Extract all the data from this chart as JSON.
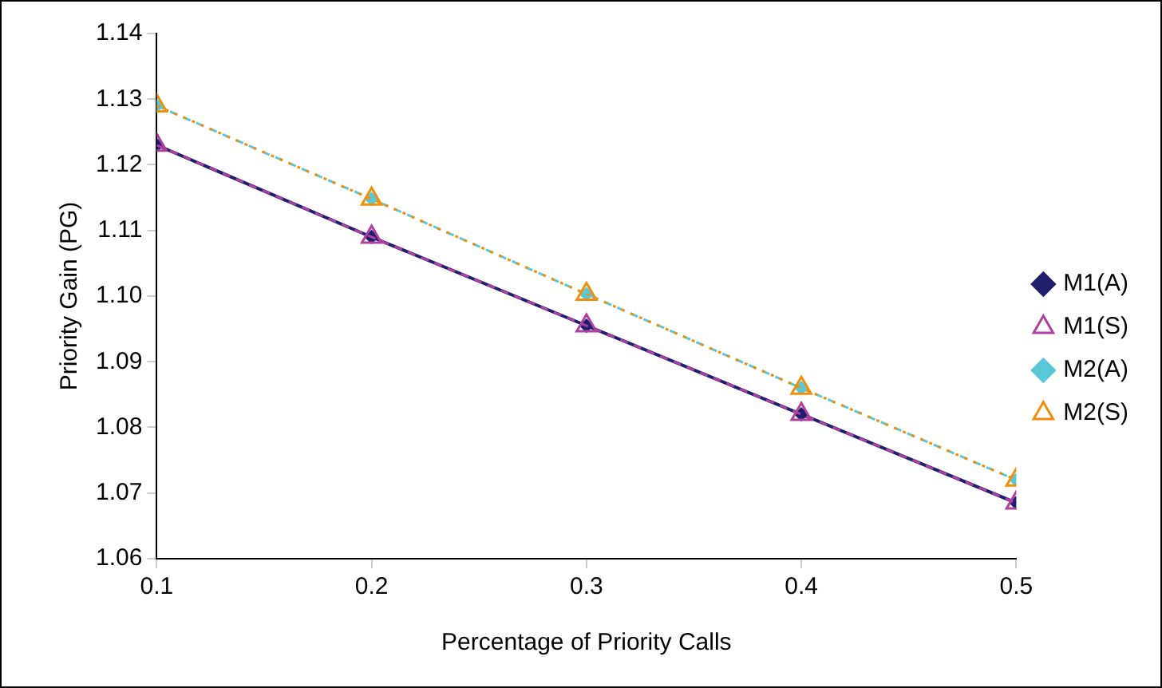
{
  "chart_data": {
    "type": "line",
    "xlabel": "Percentage of Priority Calls",
    "ylabel": "Priority Gain (PG)",
    "x": [
      0.1,
      0.2,
      0.3,
      0.4,
      0.5
    ],
    "series": [
      {
        "name": "M1(A)",
        "color": "#1f1f6e",
        "values": [
          1.123,
          1.109,
          1.0955,
          1.082,
          1.0685
        ],
        "marker": "diamond",
        "line_style": "solid"
      },
      {
        "name": "M1(S)",
        "color": "#b040a0",
        "values": [
          1.123,
          1.109,
          1.0955,
          1.082,
          1.0685
        ],
        "marker": "triangle",
        "line_style": "dashed"
      },
      {
        "name": "M2(A)",
        "color": "#5bc8d8",
        "values": [
          1.129,
          1.1148,
          1.1003,
          1.086,
          1.072
        ],
        "marker": "diamond",
        "line_style": "dashed"
      },
      {
        "name": "M2(S)",
        "color": "#f0900a",
        "values": [
          1.129,
          1.1148,
          1.1003,
          1.086,
          1.072
        ],
        "marker": "triangle",
        "line_style": "dotted"
      }
    ],
    "xlim": [
      0.1,
      0.5
    ],
    "xticks": [
      {
        "value": 0.1,
        "label": "0.1"
      },
      {
        "value": 0.2,
        "label": "0.2"
      },
      {
        "value": 0.3,
        "label": "0.3"
      },
      {
        "value": 0.4,
        "label": "0.4"
      },
      {
        "value": 0.5,
        "label": "0.5"
      }
    ],
    "ylim": [
      1.06,
      1.14
    ],
    "yticks": [
      {
        "value": 1.06,
        "label": "1.06"
      },
      {
        "value": 1.07,
        "label": "1.07"
      },
      {
        "value": 1.08,
        "label": "1.08"
      },
      {
        "value": 1.09,
        "label": "1.09"
      },
      {
        "value": 1.1,
        "label": "1.10"
      },
      {
        "value": 1.11,
        "label": "1.11"
      },
      {
        "value": 1.12,
        "label": "1.12"
      },
      {
        "value": 1.13,
        "label": "1.13"
      },
      {
        "value": 1.14,
        "label": "1.14"
      }
    ],
    "grid": false,
    "legend": "right"
  }
}
